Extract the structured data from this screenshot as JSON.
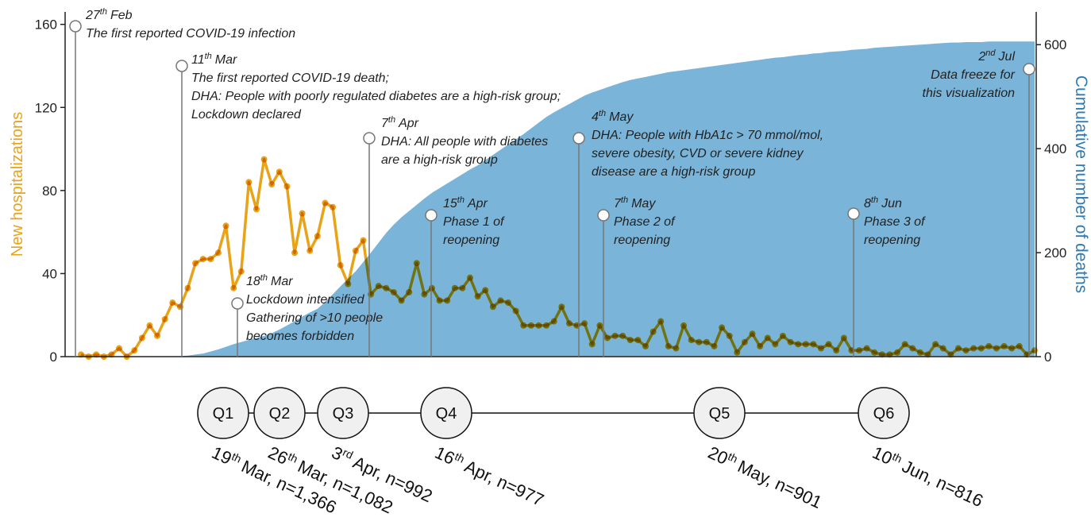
{
  "chart_data": {
    "type": "line",
    "ylabel": "New hospitalizations",
    "y2label": "Cumulative number of deaths",
    "ylim": [
      0,
      166
    ],
    "yticks": [
      0,
      40,
      80,
      120,
      160
    ],
    "y2lim": [
      0,
      663
    ],
    "y2ticks": [
      0,
      200,
      400,
      600
    ],
    "series": [
      {
        "style": "area",
        "axis": "y2",
        "color": "#7ab4d8",
        "values": [
          0,
          0,
          0,
          0,
          0,
          0,
          0,
          0,
          0,
          0,
          0,
          0,
          0,
          1,
          2,
          4,
          6,
          10,
          14,
          19,
          24,
          28,
          32,
          36,
          40,
          45,
          52,
          60,
          68,
          77,
          85,
          92,
          105,
          120,
          135,
          150,
          164,
          182,
          200,
          219,
          238,
          254,
          268,
          280,
          292,
          304,
          315,
          324,
          333,
          342,
          351,
          360,
          368,
          378,
          388,
          398,
          408,
          418,
          428,
          439,
          450,
          461,
          470,
          478,
          486,
          494,
          502,
          508,
          513,
          518,
          523,
          528,
          532,
          535,
          538,
          541,
          544,
          547,
          549,
          551,
          553,
          555,
          557,
          559,
          561,
          563,
          565,
          567,
          569,
          571,
          573,
          575,
          576,
          578,
          580,
          581,
          583,
          584,
          586,
          587,
          588,
          590,
          591,
          592,
          594,
          595,
          596,
          597,
          598,
          599,
          600,
          601,
          602,
          603,
          604,
          604,
          605,
          605,
          605,
          606,
          606,
          606,
          606,
          606,
          606,
          606
        ]
      },
      {
        "style": "line",
        "color": "#e8a317",
        "values": [
          1,
          0,
          1,
          0,
          1,
          4,
          0,
          3,
          9,
          15,
          10,
          18,
          26,
          24,
          33,
          45,
          47,
          47,
          50,
          63,
          33,
          41,
          84,
          71,
          95,
          83,
          89,
          82,
          50,
          69,
          51,
          58,
          74,
          72,
          44,
          35,
          51,
          56,
          30,
          34,
          33,
          31,
          27,
          31,
          45,
          30,
          33,
          27,
          27,
          33,
          33,
          38,
          29,
          32,
          24,
          27,
          26,
          22,
          15,
          15,
          15,
          15,
          17,
          24,
          16,
          15,
          16,
          6,
          15,
          9,
          10,
          10,
          8,
          8,
          5,
          12,
          17,
          5,
          4,
          15,
          8,
          7,
          7,
          5,
          14,
          10,
          2,
          7,
          11,
          5,
          9,
          6,
          10,
          7,
          6,
          6,
          6,
          4,
          6,
          3,
          9,
          3,
          3,
          4,
          2,
          1,
          1,
          2,
          6,
          4,
          2,
          1,
          6,
          4,
          1,
          4,
          3,
          4,
          4,
          5,
          4,
          5,
          4,
          5,
          1,
          3
        ]
      }
    ],
    "annotations": [
      {
        "day": "27",
        "suffix": "th",
        "month": "Feb",
        "lines": [
          "The first reported COVID-19 infection"
        ]
      },
      {
        "day": "11",
        "suffix": "th",
        "month": "Mar",
        "lines": [
          "The first reported COVID-19 death;",
          "DHA: People with poorly regulated diabetes are a high-risk group;",
          "Lockdown declared"
        ]
      },
      {
        "day": "18",
        "suffix": "th",
        "month": "Mar",
        "lines": [
          "Lockdown intensified",
          "Gathering of >10 people",
          "becomes forbidden"
        ]
      },
      {
        "day": "7",
        "suffix": "th",
        "month": "Apr",
        "lines": [
          "DHA: All people with diabetes",
          "are a high-risk group"
        ]
      },
      {
        "day": "15",
        "suffix": "th",
        "month": "Apr",
        "lines": [
          "Phase 1 of",
          "reopening"
        ]
      },
      {
        "day": "4",
        "suffix": "th",
        "month": "May",
        "lines": [
          "DHA: People with HbA1c > 70 mmol/mol,",
          "severe obesity, CVD or severe kidney",
          "disease are a high-risk group"
        ]
      },
      {
        "day": "7",
        "suffix": "th",
        "month": "May",
        "lines": [
          "Phase 2 of",
          "reopening"
        ]
      },
      {
        "day": "8",
        "suffix": "th",
        "month": "Jun",
        "lines": [
          "Phase 3 of",
          "reopening"
        ]
      },
      {
        "day": "2",
        "suffix": "nd",
        "month": "Jul",
        "lines": [
          "Data freeze for",
          "this visualization"
        ]
      }
    ],
    "quarters": [
      {
        "name": "Q1",
        "day": "19",
        "suffix": "th",
        "text": "Mar, n=1,366"
      },
      {
        "name": "Q2",
        "day": "26",
        "suffix": "th",
        "text": "Mar, n=1,082"
      },
      {
        "name": "Q3",
        "day": "3",
        "suffix": "rd",
        "text": "Apr, n=992"
      },
      {
        "name": "Q4",
        "day": "16",
        "suffix": "th",
        "text": "Apr, n=977"
      },
      {
        "name": "Q5",
        "day": "20",
        "suffix": "th",
        "text": "May, n=901"
      },
      {
        "name": "Q6",
        "day": "10",
        "suffix": "th",
        "text": "Jun, n=816"
      }
    ]
  }
}
